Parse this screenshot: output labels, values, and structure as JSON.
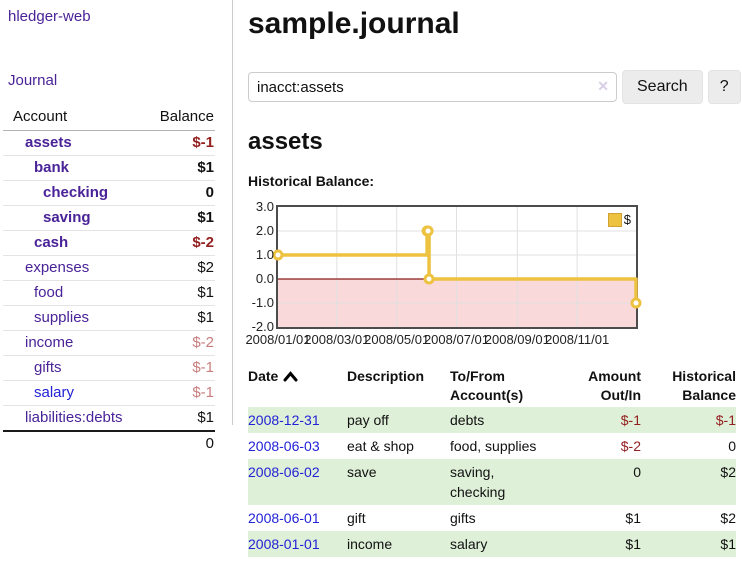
{
  "sidebar": {
    "brand": "hledger-web",
    "nav_journal": "Journal",
    "columns": {
      "account": "Account",
      "balance": "Balance"
    },
    "accounts": [
      {
        "name": "assets",
        "indent": 1,
        "bold": true,
        "balance": "$-1",
        "balance_tone": "neg-strong",
        "link_tone": "purple"
      },
      {
        "name": "bank",
        "indent": 2,
        "bold": true,
        "balance": "$1",
        "balance_tone": "normal",
        "link_tone": "purple"
      },
      {
        "name": "checking",
        "indent": 3,
        "bold": true,
        "balance": "0",
        "balance_tone": "normal",
        "link_tone": "purple"
      },
      {
        "name": "saving",
        "indent": 3,
        "bold": true,
        "balance": "$1",
        "balance_tone": "normal",
        "link_tone": "purple"
      },
      {
        "name": "cash",
        "indent": 2,
        "bold": true,
        "balance": "$-2",
        "balance_tone": "neg-strong",
        "link_tone": "purple"
      },
      {
        "name": "expenses",
        "indent": 1,
        "bold": false,
        "balance": "$2",
        "balance_tone": "normal",
        "link_tone": "purple"
      },
      {
        "name": "food",
        "indent": 2,
        "bold": false,
        "balance": "$1",
        "balance_tone": "normal",
        "link_tone": "purple"
      },
      {
        "name": "supplies",
        "indent": 2,
        "bold": false,
        "balance": "$1",
        "balance_tone": "normal",
        "link_tone": "purple"
      },
      {
        "name": "income",
        "indent": 1,
        "bold": false,
        "balance": "$-2",
        "balance_tone": "neg-muted",
        "link_tone": "purple"
      },
      {
        "name": "gifts",
        "indent": 2,
        "bold": false,
        "balance": "$-1",
        "balance_tone": "neg-muted",
        "link_tone": "purple"
      },
      {
        "name": "salary",
        "indent": 2,
        "bold": false,
        "balance": "$-1",
        "balance_tone": "neg-muted",
        "link_tone": "blue"
      },
      {
        "name": "liabilities:debts",
        "indent": 1,
        "bold": false,
        "balance": "$1",
        "balance_tone": "normal",
        "link_tone": "purple"
      }
    ],
    "total": "0"
  },
  "main": {
    "title": "sample.journal",
    "search": {
      "value": "inacct:assets",
      "clear_icon": "✕",
      "button": "Search",
      "help": "?"
    },
    "account_heading": "assets",
    "section_label": "Historical Balance:"
  },
  "chart_data": {
    "type": "line",
    "step": true,
    "title": "Historical Balance",
    "legend": {
      "position": "top-right",
      "label": "$"
    },
    "series": [
      {
        "name": "$",
        "points": [
          [
            "2008-01-01",
            1
          ],
          [
            "2008-06-01",
            2
          ],
          [
            "2008-06-02",
            2
          ],
          [
            "2008-06-03",
            0
          ],
          [
            "2008-12-31",
            -1
          ]
        ]
      }
    ],
    "x_range": [
      "2008-01-01",
      "2008-12-31"
    ],
    "ylim": [
      -2,
      3
    ],
    "ytick_labels": [
      "3.0",
      "2.0",
      "1.0",
      "0.0",
      "-1.0",
      "-2.0"
    ],
    "xtick_labels": [
      "2008/01/01",
      "2008/03/01",
      "2008/05/01",
      "2008/07/01",
      "2008/09/01",
      "2008/11/01"
    ],
    "grid": true,
    "colors": {
      "line": "#edc240",
      "marker_fill": "#ffffff",
      "negative_region": "#f9d9d9",
      "zero_line": "#8b1a1a",
      "grid": "#e0e0e0",
      "border": "#4c4c4c"
    }
  },
  "register": {
    "columns": [
      "Date",
      "Description",
      "To/From Account(s)",
      "Amount Out/In",
      "Historical Balance"
    ],
    "sort_icon": "chevron-up",
    "rows": [
      {
        "date": "2008-12-31",
        "description": "pay off",
        "accounts": "debts",
        "amount": "$-1",
        "balance": "$-1"
      },
      {
        "date": "2008-06-03",
        "description": "eat & shop",
        "accounts": "food, supplies",
        "amount": "$-2",
        "balance": "0"
      },
      {
        "date": "2008-06-02",
        "description": "save",
        "accounts": "saving, checking",
        "amount": "0",
        "balance": "$2"
      },
      {
        "date": "2008-06-01",
        "description": "gift",
        "accounts": "gifts",
        "amount": "$1",
        "balance": "$2"
      },
      {
        "date": "2008-01-01",
        "description": "income",
        "accounts": "salary",
        "amount": "$1",
        "balance": "$1"
      }
    ]
  }
}
